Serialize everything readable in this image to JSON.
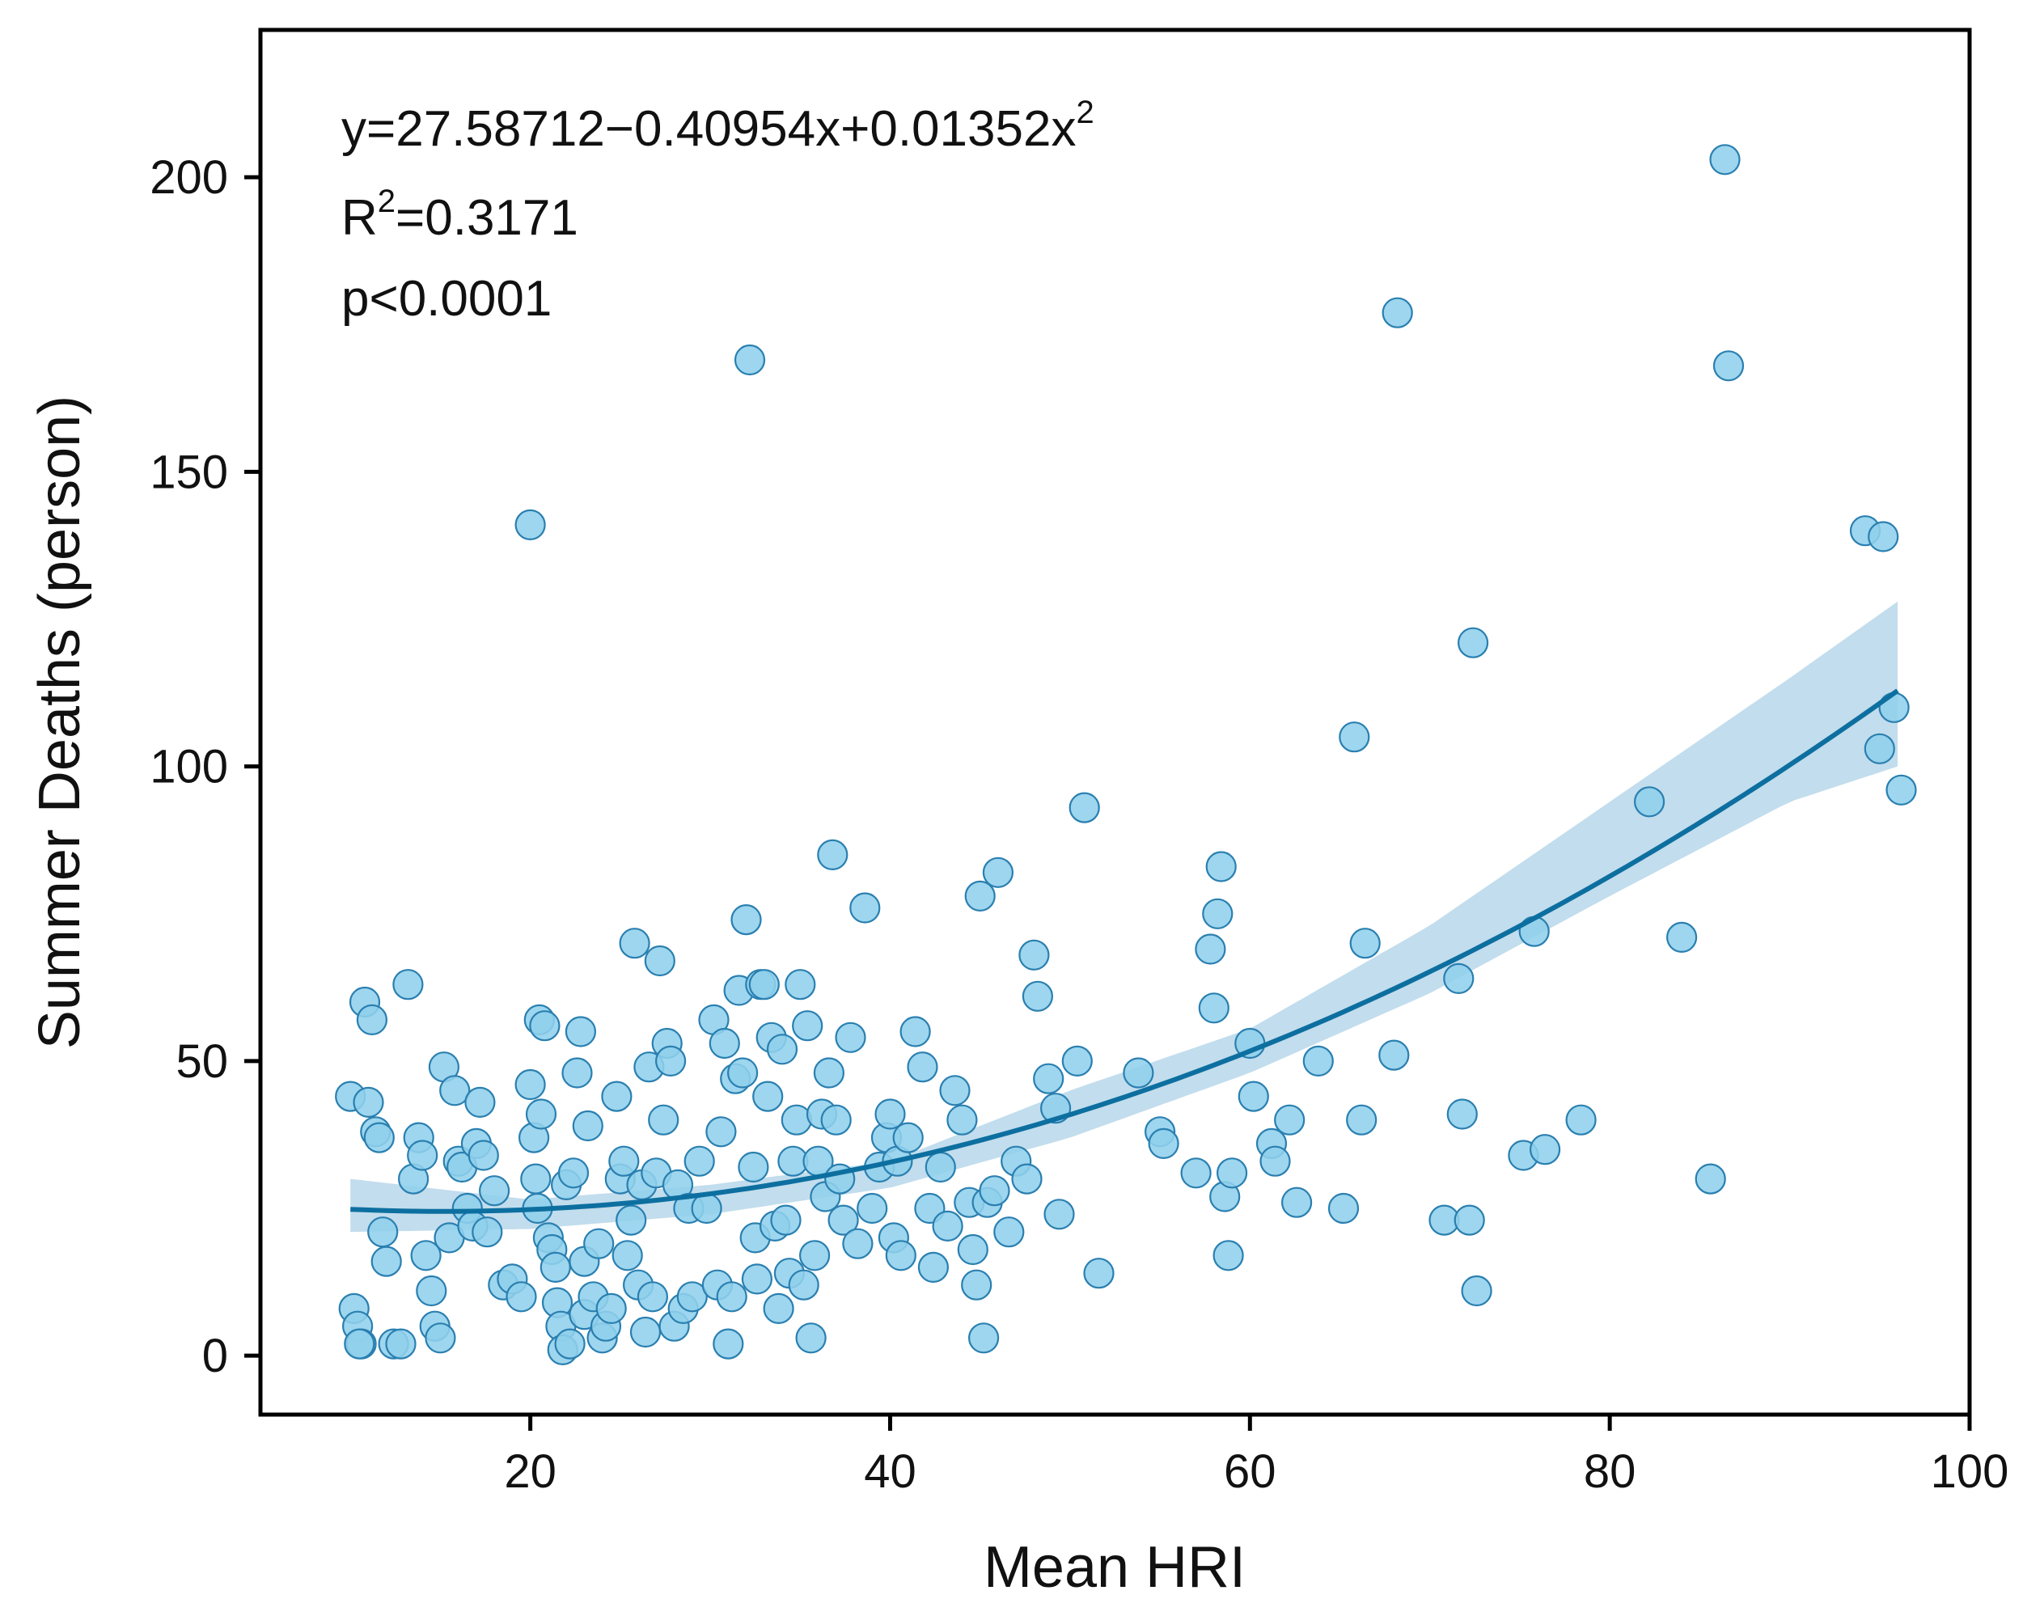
{
  "chart_data": {
    "type": "scatter",
    "xlabel": "Mean HRI",
    "ylabel": "Summer Deaths (person)",
    "xlim": [
      5,
      100
    ],
    "ylim": [
      -10,
      225
    ],
    "xticks": [
      20,
      40,
      60,
      80,
      100
    ],
    "yticks": [
      0,
      50,
      100,
      150,
      200
    ],
    "grid": false,
    "annotations": {
      "equation": "y=27.58712−0.40954x+0.01352x",
      "equation_sup": "2",
      "r2_prefix": "R",
      "r2_sup": "2",
      "r2_value": "=0.3171",
      "p_value": "p<0.0001"
    },
    "fit": {
      "model": "quadratic",
      "coefficients": [
        27.58712,
        -0.40954,
        0.01352
      ],
      "x_range": [
        10,
        96
      ],
      "ci_lower": [
        [
          10,
          21
        ],
        [
          20,
          21.5
        ],
        [
          30,
          24
        ],
        [
          40,
          28.5
        ],
        [
          50,
          37
        ],
        [
          60,
          48
        ],
        [
          70,
          61.5
        ],
        [
          80,
          78
        ],
        [
          90,
          94
        ],
        [
          96,
          100
        ]
      ],
      "ci_upper": [
        [
          10,
          30
        ],
        [
          20,
          26.5
        ],
        [
          30,
          29
        ],
        [
          40,
          33
        ],
        [
          50,
          45
        ],
        [
          60,
          55.5
        ],
        [
          70,
          73
        ],
        [
          80,
          94
        ],
        [
          90,
          115
        ],
        [
          96,
          128
        ]
      ]
    },
    "points": [
      [
        10,
        44
      ],
      [
        10.2,
        8
      ],
      [
        10.4,
        5
      ],
      [
        10.6,
        2
      ],
      [
        10.8,
        60
      ],
      [
        11,
        43
      ],
      [
        11.2,
        57
      ],
      [
        11.4,
        38
      ],
      [
        11.6,
        37
      ],
      [
        10.5,
        2
      ],
      [
        11.8,
        21
      ],
      [
        12,
        16
      ],
      [
        12.4,
        2
      ],
      [
        12.8,
        2
      ],
      [
        13.2,
        63
      ],
      [
        13.5,
        30
      ],
      [
        13.8,
        37
      ],
      [
        14,
        34
      ],
      [
        14.2,
        17
      ],
      [
        14.5,
        11
      ],
      [
        14.7,
        5
      ],
      [
        15,
        3
      ],
      [
        15.2,
        49
      ],
      [
        15.5,
        20
      ],
      [
        15.8,
        45
      ],
      [
        16,
        33
      ],
      [
        16.2,
        32
      ],
      [
        16.5,
        25
      ],
      [
        16.8,
        22
      ],
      [
        17,
        36
      ],
      [
        17.2,
        43
      ],
      [
        17.4,
        34
      ],
      [
        17.6,
        21
      ],
      [
        18,
        28
      ],
      [
        18.5,
        12
      ],
      [
        19,
        13
      ],
      [
        19.5,
        10
      ],
      [
        20,
        141
      ],
      [
        20,
        46
      ],
      [
        20.2,
        37
      ],
      [
        20.3,
        30
      ],
      [
        20.4,
        25
      ],
      [
        20.5,
        57
      ],
      [
        20.6,
        41
      ],
      [
        20.8,
        56
      ],
      [
        21,
        20
      ],
      [
        21.2,
        18
      ],
      [
        21.4,
        15
      ],
      [
        21.5,
        9
      ],
      [
        21.7,
        5
      ],
      [
        21.8,
        1
      ],
      [
        22,
        29
      ],
      [
        22.2,
        2
      ],
      [
        22.4,
        31
      ],
      [
        22.6,
        48
      ],
      [
        22.8,
        55
      ],
      [
        23,
        16
      ],
      [
        23,
        7
      ],
      [
        23.2,
        39
      ],
      [
        23.5,
        10
      ],
      [
        23.8,
        19
      ],
      [
        24,
        3
      ],
      [
        24.2,
        5
      ],
      [
        24.5,
        8
      ],
      [
        24.8,
        44
      ],
      [
        25,
        30
      ],
      [
        25.2,
        33
      ],
      [
        25.4,
        17
      ],
      [
        25.6,
        23
      ],
      [
        25.8,
        70
      ],
      [
        26,
        12
      ],
      [
        26.2,
        29
      ],
      [
        26.4,
        4
      ],
      [
        26.6,
        49
      ],
      [
        26.8,
        10
      ],
      [
        27,
        31
      ],
      [
        27.2,
        67
      ],
      [
        27.4,
        40
      ],
      [
        27.6,
        53
      ],
      [
        27.8,
        50
      ],
      [
        28,
        5
      ],
      [
        28.2,
        29
      ],
      [
        28.5,
        8
      ],
      [
        28.8,
        25
      ],
      [
        29,
        10
      ],
      [
        29.4,
        33
      ],
      [
        29.8,
        25
      ],
      [
        30.2,
        57
      ],
      [
        30.4,
        12
      ],
      [
        30.6,
        38
      ],
      [
        30.8,
        53
      ],
      [
        31,
        2
      ],
      [
        31.2,
        10
      ],
      [
        31.4,
        47
      ],
      [
        31.6,
        62
      ],
      [
        31.8,
        48
      ],
      [
        32,
        74
      ],
      [
        32.2,
        169
      ],
      [
        32.4,
        32
      ],
      [
        32.5,
        20
      ],
      [
        32.6,
        13
      ],
      [
        32.8,
        63
      ],
      [
        33,
        63
      ],
      [
        33.2,
        44
      ],
      [
        33.4,
        54
      ],
      [
        33.6,
        22
      ],
      [
        33.8,
        8
      ],
      [
        34,
        52
      ],
      [
        34.2,
        23
      ],
      [
        34.4,
        14
      ],
      [
        34.6,
        33
      ],
      [
        34.8,
        40
      ],
      [
        35,
        63
      ],
      [
        35.2,
        12
      ],
      [
        35.4,
        56
      ],
      [
        35.6,
        3
      ],
      [
        35.8,
        17
      ],
      [
        36,
        33
      ],
      [
        36.2,
        41
      ],
      [
        36.4,
        27
      ],
      [
        36.6,
        48
      ],
      [
        36.8,
        85
      ],
      [
        37,
        40
      ],
      [
        37.2,
        30
      ],
      [
        37.4,
        23
      ],
      [
        37.8,
        54
      ],
      [
        38.2,
        19
      ],
      [
        38.6,
        76
      ],
      [
        39,
        25
      ],
      [
        39.4,
        32
      ],
      [
        39.8,
        37
      ],
      [
        40,
        41
      ],
      [
        40.2,
        20
      ],
      [
        40.4,
        33
      ],
      [
        40.6,
        17
      ],
      [
        41,
        37
      ],
      [
        41.4,
        55
      ],
      [
        41.8,
        49
      ],
      [
        42.2,
        25
      ],
      [
        42.4,
        15
      ],
      [
        42.8,
        32
      ],
      [
        43.2,
        22
      ],
      [
        43.6,
        45
      ],
      [
        44,
        40
      ],
      [
        44.4,
        26
      ],
      [
        44.6,
        18
      ],
      [
        44.8,
        12
      ],
      [
        45,
        78
      ],
      [
        45.2,
        3
      ],
      [
        45.4,
        26
      ],
      [
        45.8,
        28
      ],
      [
        46,
        82
      ],
      [
        46.6,
        21
      ],
      [
        47,
        33
      ],
      [
        47.6,
        30
      ],
      [
        48,
        68
      ],
      [
        48.2,
        61
      ],
      [
        48.8,
        47
      ],
      [
        49.2,
        42
      ],
      [
        49.4,
        24
      ],
      [
        50.4,
        50
      ],
      [
        50.8,
        93
      ],
      [
        51.6,
        14
      ],
      [
        53.8,
        48
      ],
      [
        55,
        38
      ],
      [
        55.2,
        36
      ],
      [
        57,
        31
      ],
      [
        57.8,
        69
      ],
      [
        58,
        59
      ],
      [
        58.2,
        75
      ],
      [
        58.4,
        83
      ],
      [
        58.6,
        27
      ],
      [
        58.8,
        17
      ],
      [
        59,
        31
      ],
      [
        60,
        53
      ],
      [
        60.2,
        44
      ],
      [
        61.2,
        36
      ],
      [
        61.4,
        33
      ],
      [
        62.2,
        40
      ],
      [
        62.6,
        26
      ],
      [
        63.8,
        50
      ],
      [
        65.2,
        25
      ],
      [
        65.8,
        105
      ],
      [
        66.2,
        40
      ],
      [
        66.4,
        70
      ],
      [
        68,
        51
      ],
      [
        68.2,
        177
      ],
      [
        70.8,
        23
      ],
      [
        71.6,
        64
      ],
      [
        71.8,
        41
      ],
      [
        72.2,
        23
      ],
      [
        72.4,
        121
      ],
      [
        72.6,
        11
      ],
      [
        75.2,
        34
      ],
      [
        75.8,
        72
      ],
      [
        76.4,
        35
      ],
      [
        78.4,
        40
      ],
      [
        82.2,
        94
      ],
      [
        84,
        71
      ],
      [
        85.6,
        30
      ],
      [
        86.4,
        203
      ],
      [
        86.6,
        168
      ],
      [
        94.2,
        140
      ],
      [
        95,
        103
      ],
      [
        95.2,
        139
      ],
      [
        95.8,
        110
      ],
      [
        96.2,
        96
      ]
    ]
  }
}
